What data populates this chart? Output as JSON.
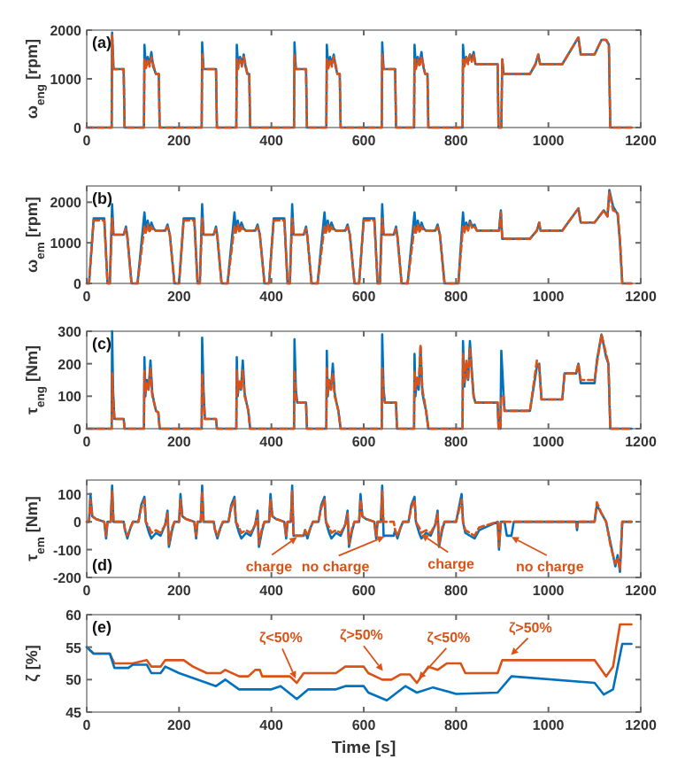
{
  "chart_data": [
    {
      "type": "line",
      "ylabel": "ω$_{eng}$ [rpm]",
      "annotations": [
        "(a)"
      ],
      "xlim": [
        0,
        1200
      ],
      "xticks": [
        0,
        200,
        400,
        600,
        800,
        1000,
        1200
      ],
      "ylim": [
        0,
        2000
      ],
      "yticks": [
        0,
        1000,
        2000
      ],
      "grid": false,
      "x": [
        0,
        54,
        55,
        58,
        80,
        82,
        124,
        125,
        128,
        132,
        136,
        140,
        144,
        148,
        150,
        156,
        158,
        249,
        250,
        253,
        280,
        282,
        324,
        325,
        328,
        332,
        336,
        340,
        344,
        348,
        352,
        354,
        449,
        450,
        453,
        475,
        477,
        519,
        520,
        523,
        527,
        531,
        535,
        539,
        543,
        548,
        550,
        639,
        640,
        643,
        668,
        670,
        709,
        710,
        713,
        717,
        721,
        725,
        729,
        733,
        738,
        740,
        814,
        815,
        818,
        822,
        826,
        830,
        834,
        838,
        842,
        890,
        892,
        898,
        900,
        903,
        960,
        972,
        978,
        982,
        1030,
        1065,
        1070,
        1100,
        1115,
        1125,
        1131,
        1134,
        1180
      ],
      "series": [
        {
          "color": "#0072bd",
          "line_style": "solid",
          "values": [
            0,
            0,
            1950,
            1200,
            1200,
            0,
            0,
            1700,
            1250,
            1450,
            1300,
            1550,
            1250,
            1150,
            1100,
            1100,
            0,
            0,
            1750,
            1200,
            1200,
            0,
            0,
            1700,
            1250,
            1450,
            1300,
            1500,
            1250,
            1100,
            1100,
            0,
            0,
            1750,
            1200,
            1200,
            0,
            0,
            1700,
            1250,
            1450,
            1300,
            1500,
            1250,
            1100,
            1100,
            0,
            0,
            1750,
            1200,
            1200,
            0,
            0,
            1700,
            1250,
            1450,
            1300,
            1550,
            1250,
            1100,
            1100,
            0,
            0,
            1700,
            1300,
            1450,
            1350,
            1500,
            1400,
            1550,
            1300,
            1300,
            0,
            0,
            1400,
            1100,
            1100,
            1300,
            1500,
            1300,
            1300,
            1850,
            1500,
            1500,
            1800,
            1800,
            1700,
            0,
            0
          ]
        },
        {
          "color": "#d95319",
          "line_style": "dashed",
          "values": [
            0,
            0,
            1900,
            1200,
            1200,
            0,
            0,
            1400,
            1200,
            1400,
            1250,
            1450,
            1300,
            1150,
            1100,
            1100,
            0,
            0,
            1500,
            1200,
            1200,
            0,
            0,
            1400,
            1200,
            1400,
            1250,
            1450,
            1300,
            1100,
            1100,
            0,
            0,
            1500,
            1200,
            1200,
            0,
            0,
            1400,
            1200,
            1400,
            1250,
            1450,
            1300,
            1100,
            1100,
            0,
            0,
            1500,
            1200,
            1200,
            0,
            0,
            1400,
            1200,
            1400,
            1250,
            1450,
            1300,
            1100,
            1100,
            0,
            0,
            1400,
            1250,
            1450,
            1300,
            1500,
            1350,
            1500,
            1300,
            1300,
            0,
            0,
            1400,
            1100,
            1100,
            1300,
            1500,
            1300,
            1300,
            1850,
            1500,
            1500,
            1800,
            1800,
            1700,
            0,
            0
          ]
        }
      ]
    },
    {
      "type": "line",
      "ylabel": "ω$_{em}$ [rpm]",
      "annotations": [
        "(b)"
      ],
      "xlim": [
        0,
        1200
      ],
      "xticks": [
        0,
        200,
        400,
        600,
        800,
        1000,
        1200
      ],
      "ylim": [
        0,
        2400
      ],
      "yticks": [
        0,
        1000,
        2000
      ],
      "grid": false,
      "x": [
        0,
        5,
        15,
        38,
        45,
        50,
        55,
        58,
        80,
        85,
        88,
        97,
        110,
        125,
        128,
        132,
        136,
        140,
        145,
        150,
        170,
        175,
        180,
        190,
        195,
        200,
        210,
        233,
        240,
        245,
        250,
        253,
        275,
        280,
        283,
        292,
        305,
        320,
        323,
        327,
        331,
        335,
        340,
        345,
        365,
        370,
        375,
        385,
        390,
        395,
        405,
        428,
        435,
        440,
        445,
        448,
        470,
        475,
        478,
        487,
        500,
        515,
        518,
        522,
        526,
        530,
        535,
        540,
        560,
        565,
        570,
        580,
        585,
        590,
        600,
        623,
        630,
        635,
        640,
        643,
        665,
        670,
        673,
        682,
        695,
        710,
        713,
        717,
        721,
        725,
        730,
        735,
        755,
        760,
        765,
        775,
        805,
        815,
        818,
        822,
        826,
        830,
        835,
        840,
        845,
        893,
        897,
        900,
        960,
        975,
        980,
        983,
        1030,
        1065,
        1070,
        1100,
        1120,
        1128,
        1132,
        1140,
        1150,
        1155,
        1160,
        1180
      ],
      "series": [
        {
          "color": "#0072bd",
          "line_style": "solid",
          "values": [
            0,
            0,
            1600,
            1600,
            0,
            0,
            1950,
            1200,
            1200,
            1400,
            1150,
            0,
            0,
            1750,
            1300,
            1550,
            1300,
            1500,
            1350,
            1300,
            1300,
            1450,
            1200,
            0,
            0,
            0,
            1600,
            1600,
            0,
            0,
            1950,
            1200,
            1200,
            1400,
            1150,
            0,
            0,
            1750,
            1300,
            1550,
            1300,
            1500,
            1350,
            1300,
            1300,
            1450,
            1200,
            0,
            0,
            0,
            1600,
            1600,
            0,
            0,
            1950,
            1200,
            1200,
            1400,
            1150,
            0,
            0,
            1750,
            1300,
            1550,
            1300,
            1500,
            1350,
            1300,
            1300,
            1450,
            1200,
            0,
            0,
            0,
            1600,
            1600,
            0,
            0,
            1950,
            1200,
            1200,
            1400,
            1150,
            0,
            0,
            1750,
            1300,
            1550,
            1300,
            1500,
            1350,
            1300,
            1300,
            1450,
            1200,
            0,
            0,
            1750,
            1300,
            1500,
            1350,
            1550,
            1400,
            1450,
            1300,
            1300,
            1800,
            1100,
            1100,
            1300,
            1500,
            1300,
            1300,
            1850,
            1500,
            1500,
            1800,
            1650,
            2300,
            1900,
            1700,
            1000,
            0,
            0
          ]
        },
        {
          "color": "#d95319",
          "line_style": "dashed",
          "values": [
            0,
            0,
            1550,
            1550,
            0,
            0,
            1600,
            1200,
            1200,
            1350,
            1150,
            0,
            0,
            1400,
            1250,
            1450,
            1250,
            1400,
            1300,
            1300,
            1300,
            1400,
            1200,
            0,
            0,
            0,
            1550,
            1550,
            0,
            0,
            1600,
            1200,
            1200,
            1350,
            1150,
            0,
            0,
            1400,
            1250,
            1450,
            1250,
            1400,
            1300,
            1300,
            1300,
            1400,
            1200,
            0,
            0,
            0,
            1550,
            1550,
            0,
            0,
            1600,
            1200,
            1200,
            1350,
            1150,
            0,
            0,
            1400,
            1250,
            1450,
            1250,
            1400,
            1300,
            1300,
            1300,
            1400,
            1200,
            0,
            0,
            0,
            1550,
            1550,
            0,
            0,
            1600,
            1200,
            1200,
            1350,
            1150,
            0,
            0,
            1400,
            1250,
            1450,
            1250,
            1400,
            1300,
            1300,
            1300,
            1400,
            1200,
            0,
            0,
            1400,
            1250,
            1450,
            1300,
            1500,
            1350,
            1400,
            1300,
            1300,
            1750,
            1100,
            1100,
            1300,
            1500,
            1300,
            1300,
            1850,
            1500,
            1500,
            1800,
            1650,
            2250,
            1800,
            1750,
            1100,
            0,
            0
          ]
        }
      ]
    },
    {
      "type": "line",
      "ylabel": "τ$_{eng}$ [Nm]",
      "annotations": [
        "(c)"
      ],
      "xlim": [
        0,
        1200
      ],
      "xticks": [
        0,
        200,
        400,
        600,
        800,
        1000,
        1200
      ],
      "ylim": [
        0,
        300
      ],
      "yticks": [
        0,
        100,
        200,
        300
      ],
      "grid": false,
      "x": [
        0,
        54,
        55,
        57,
        60,
        80,
        82,
        124,
        125,
        127,
        130,
        134,
        138,
        142,
        146,
        150,
        155,
        158,
        249,
        250,
        253,
        256,
        280,
        282,
        324,
        325,
        327,
        330,
        334,
        338,
        342,
        346,
        350,
        354,
        449,
        450,
        453,
        456,
        475,
        477,
        519,
        520,
        522,
        525,
        529,
        533,
        537,
        541,
        545,
        550,
        639,
        640,
        643,
        646,
        670,
        672,
        709,
        710,
        712,
        715,
        719,
        723,
        727,
        731,
        735,
        740,
        814,
        815,
        818,
        822,
        826,
        830,
        834,
        838,
        842,
        890,
        892,
        896,
        898,
        903,
        905,
        960,
        975,
        980,
        985,
        1030,
        1035,
        1060,
        1065,
        1070,
        1100,
        1105,
        1115,
        1125,
        1130,
        1134,
        1180
      ],
      "series": [
        {
          "color": "#0072bd",
          "line_style": "solid",
          "values": [
            0,
            0,
            300,
            120,
            30,
            30,
            0,
            0,
            220,
            100,
            150,
            120,
            210,
            110,
            80,
            55,
            50,
            0,
            0,
            280,
            120,
            30,
            30,
            0,
            0,
            220,
            100,
            140,
            120,
            210,
            110,
            80,
            55,
            0,
            0,
            275,
            120,
            80,
            80,
            0,
            0,
            240,
            100,
            150,
            120,
            200,
            110,
            80,
            55,
            0,
            0,
            290,
            120,
            80,
            80,
            0,
            0,
            230,
            100,
            150,
            120,
            250,
            110,
            80,
            55,
            0,
            0,
            270,
            130,
            200,
            150,
            270,
            180,
            100,
            80,
            80,
            0,
            0,
            240,
            100,
            55,
            55,
            190,
            200,
            90,
            90,
            170,
            170,
            200,
            140,
            140,
            210,
            290,
            220,
            200,
            0,
            0
          ]
        },
        {
          "color": "#d95319",
          "line_style": "dashed",
          "values": [
            0,
            0,
            170,
            100,
            30,
            30,
            0,
            0,
            180,
            110,
            140,
            120,
            190,
            100,
            80,
            55,
            50,
            0,
            0,
            170,
            100,
            30,
            30,
            0,
            0,
            180,
            110,
            150,
            120,
            180,
            100,
            80,
            55,
            0,
            0,
            180,
            100,
            80,
            80,
            0,
            0,
            190,
            110,
            150,
            120,
            170,
            100,
            80,
            55,
            0,
            0,
            190,
            100,
            80,
            80,
            0,
            0,
            180,
            120,
            160,
            130,
            260,
            120,
            90,
            55,
            0,
            0,
            230,
            140,
            210,
            150,
            250,
            170,
            100,
            80,
            80,
            0,
            0,
            100,
            100,
            55,
            55,
            210,
            190,
            90,
            90,
            170,
            170,
            200,
            150,
            150,
            200,
            290,
            230,
            200,
            0,
            0
          ]
        }
      ]
    },
    {
      "type": "line",
      "ylabel": "τ$_{em}$ [Nm]",
      "annotations": [
        "(d)",
        {
          "text": "charge",
          "x": 460,
          "y": -50
        },
        {
          "text": "no charge",
          "x": 650,
          "y": -50
        },
        {
          "text": "charge",
          "x": 720,
          "y": -40
        },
        {
          "text": "no charge",
          "x": 915,
          "y": -50
        }
      ],
      "xlim": [
        0,
        1200
      ],
      "xticks": [
        0,
        200,
        400,
        600,
        800,
        1000,
        1200
      ],
      "ylim": [
        -200,
        150
      ],
      "yticks": [
        -200,
        -100,
        0,
        100
      ],
      "grid": false,
      "x": [
        0,
        5,
        8,
        12,
        20,
        38,
        42,
        45,
        52,
        55,
        58,
        80,
        83,
        88,
        95,
        100,
        112,
        118,
        125,
        128,
        135,
        140,
        150,
        160,
        170,
        175,
        178,
        185,
        190,
        195,
        200,
        203,
        207,
        215,
        233,
        237,
        240,
        247,
        250,
        253,
        275,
        278,
        283,
        290,
        295,
        307,
        313,
        320,
        323,
        330,
        335,
        345,
        355,
        365,
        370,
        373,
        380,
        385,
        390,
        395,
        398,
        402,
        410,
        428,
        432,
        435,
        442,
        445,
        448,
        470,
        473,
        478,
        485,
        490,
        502,
        508,
        515,
        518,
        525,
        530,
        540,
        550,
        560,
        565,
        568,
        575,
        580,
        585,
        590,
        593,
        597,
        605,
        623,
        627,
        630,
        637,
        640,
        643,
        665,
        668,
        673,
        680,
        685,
        697,
        703,
        710,
        713,
        720,
        725,
        735,
        745,
        755,
        760,
        763,
        770,
        775,
        780,
        800,
        812,
        815,
        820,
        840,
        850,
        890,
        893,
        897,
        905,
        910,
        920,
        925,
        1060,
        1062,
        1064,
        1100,
        1105,
        1115,
        1125,
        1135,
        1145,
        1150,
        1155,
        1160,
        1180
      ],
      "series": [
        {
          "color": "#0072bd",
          "line_style": "solid",
          "values": [
            0,
            0,
            100,
            20,
            10,
            0,
            -60,
            0,
            0,
            130,
            0,
            0,
            -30,
            -60,
            -20,
            0,
            0,
            60,
            90,
            0,
            -40,
            -60,
            -40,
            -50,
            -10,
            40,
            -90,
            -30,
            0,
            0,
            0,
            100,
            20,
            10,
            0,
            -60,
            0,
            0,
            130,
            0,
            0,
            -30,
            -60,
            -20,
            0,
            0,
            60,
            90,
            0,
            -40,
            -60,
            -40,
            -50,
            -10,
            40,
            -90,
            -30,
            0,
            0,
            0,
            100,
            20,
            10,
            0,
            -60,
            0,
            0,
            130,
            -50,
            -50,
            -30,
            -60,
            -20,
            0,
            0,
            60,
            90,
            0,
            -40,
            -60,
            -40,
            -50,
            -10,
            40,
            -90,
            -30,
            0,
            0,
            0,
            100,
            20,
            10,
            0,
            -60,
            0,
            0,
            130,
            -50,
            -50,
            -30,
            -60,
            -20,
            0,
            0,
            60,
            90,
            0,
            -40,
            -60,
            -40,
            -50,
            -10,
            40,
            -90,
            -30,
            0,
            0,
            0,
            100,
            0,
            -40,
            -60,
            -30,
            0,
            -100,
            0,
            0,
            -50,
            -50,
            0,
            0,
            -30,
            0,
            0,
            60,
            30,
            0,
            -80,
            -160,
            -120,
            -180,
            0,
            0
          ]
        },
        {
          "color": "#d95319",
          "line_style": "dashed",
          "values": [
            0,
            0,
            80,
            20,
            10,
            0,
            -50,
            0,
            0,
            110,
            0,
            0,
            -30,
            -50,
            -20,
            0,
            0,
            50,
            80,
            0,
            -20,
            -40,
            -30,
            -40,
            -10,
            30,
            -80,
            -20,
            0,
            0,
            0,
            80,
            20,
            10,
            0,
            -50,
            0,
            0,
            110,
            0,
            0,
            -30,
            -50,
            -20,
            0,
            0,
            50,
            80,
            0,
            -20,
            -40,
            -30,
            -40,
            -10,
            30,
            -80,
            -20,
            0,
            0,
            0,
            80,
            20,
            10,
            0,
            -50,
            0,
            0,
            110,
            -50,
            -50,
            -30,
            -50,
            -20,
            0,
            0,
            50,
            80,
            0,
            -20,
            -40,
            -30,
            -40,
            -10,
            30,
            -80,
            -20,
            0,
            0,
            0,
            80,
            20,
            10,
            0,
            -50,
            0,
            0,
            110,
            0,
            0,
            -30,
            -50,
            -20,
            0,
            0,
            50,
            80,
            0,
            -20,
            -40,
            -30,
            -40,
            -10,
            30,
            -80,
            -20,
            0,
            0,
            0,
            80,
            0,
            -30,
            -50,
            -20,
            0,
            -90,
            0,
            0,
            0,
            0,
            0,
            0,
            -20,
            0,
            0,
            70,
            30,
            0,
            -90,
            -150,
            -130,
            -170,
            0,
            0
          ]
        }
      ]
    },
    {
      "type": "line",
      "ylabel": "ζ [%]",
      "xlabel": "Time [s]",
      "annotations": [
        "(e)",
        {
          "text": "ζ<50%",
          "x": 455,
          "y": 49.8
        },
        {
          "text": "ζ>50%",
          "x": 645,
          "y": 51
        },
        {
          "text": "ζ<50%",
          "x": 715,
          "y": 49.8
        },
        {
          "text": "ζ>50%",
          "x": 915,
          "y": 53.5
        }
      ],
      "xlim": [
        0,
        1200
      ],
      "xticks": [
        0,
        200,
        400,
        600,
        800,
        1000,
        1200
      ],
      "ylim": [
        45,
        60
      ],
      "yticks": [
        45,
        50,
        55,
        60
      ],
      "grid": false,
      "series": [
        {
          "color": "#d95319",
          "line_style": "solid",
          "x": [
            0,
            15,
            50,
            60,
            100,
            130,
            140,
            160,
            170,
            210,
            230,
            260,
            290,
            300,
            330,
            350,
            365,
            375,
            380,
            440,
            455,
            470,
            540,
            560,
            600,
            610,
            640,
            660,
            680,
            700,
            715,
            740,
            760,
            780,
            810,
            820,
            890,
            900,
            1100,
            1125,
            1140,
            1155,
            1180
          ],
          "values": [
            55,
            54,
            54,
            52.5,
            52.5,
            53,
            52,
            52,
            53,
            53,
            52,
            51,
            51,
            51.5,
            50.5,
            50.5,
            51.5,
            51.5,
            50.5,
            50.5,
            49.5,
            51,
            51,
            52,
            52,
            51,
            50,
            50,
            50.8,
            50.8,
            49.5,
            52,
            51.5,
            52.5,
            52.5,
            51,
            51,
            53,
            53,
            50.5,
            52,
            58.5,
            58.5
          ]
        },
        {
          "color": "#0072bd",
          "line_style": "solid",
          "x": [
            0,
            15,
            50,
            60,
            90,
            100,
            130,
            140,
            160,
            170,
            200,
            260,
            280,
            300,
            330,
            400,
            420,
            455,
            480,
            540,
            560,
            600,
            610,
            650,
            690,
            715,
            750,
            800,
            890,
            920,
            1100,
            1120,
            1140,
            1160,
            1180
          ],
          "values": [
            55,
            54,
            54,
            51.8,
            51.8,
            52.3,
            52.3,
            51,
            51,
            52,
            51,
            49.5,
            49,
            50,
            48.5,
            48.5,
            49,
            47,
            48.5,
            48.5,
            49,
            49,
            48,
            46.8,
            49,
            48,
            48.8,
            47.8,
            48,
            50.5,
            49.5,
            47.7,
            48.5,
            55.5,
            55.5
          ]
        }
      ]
    }
  ]
}
